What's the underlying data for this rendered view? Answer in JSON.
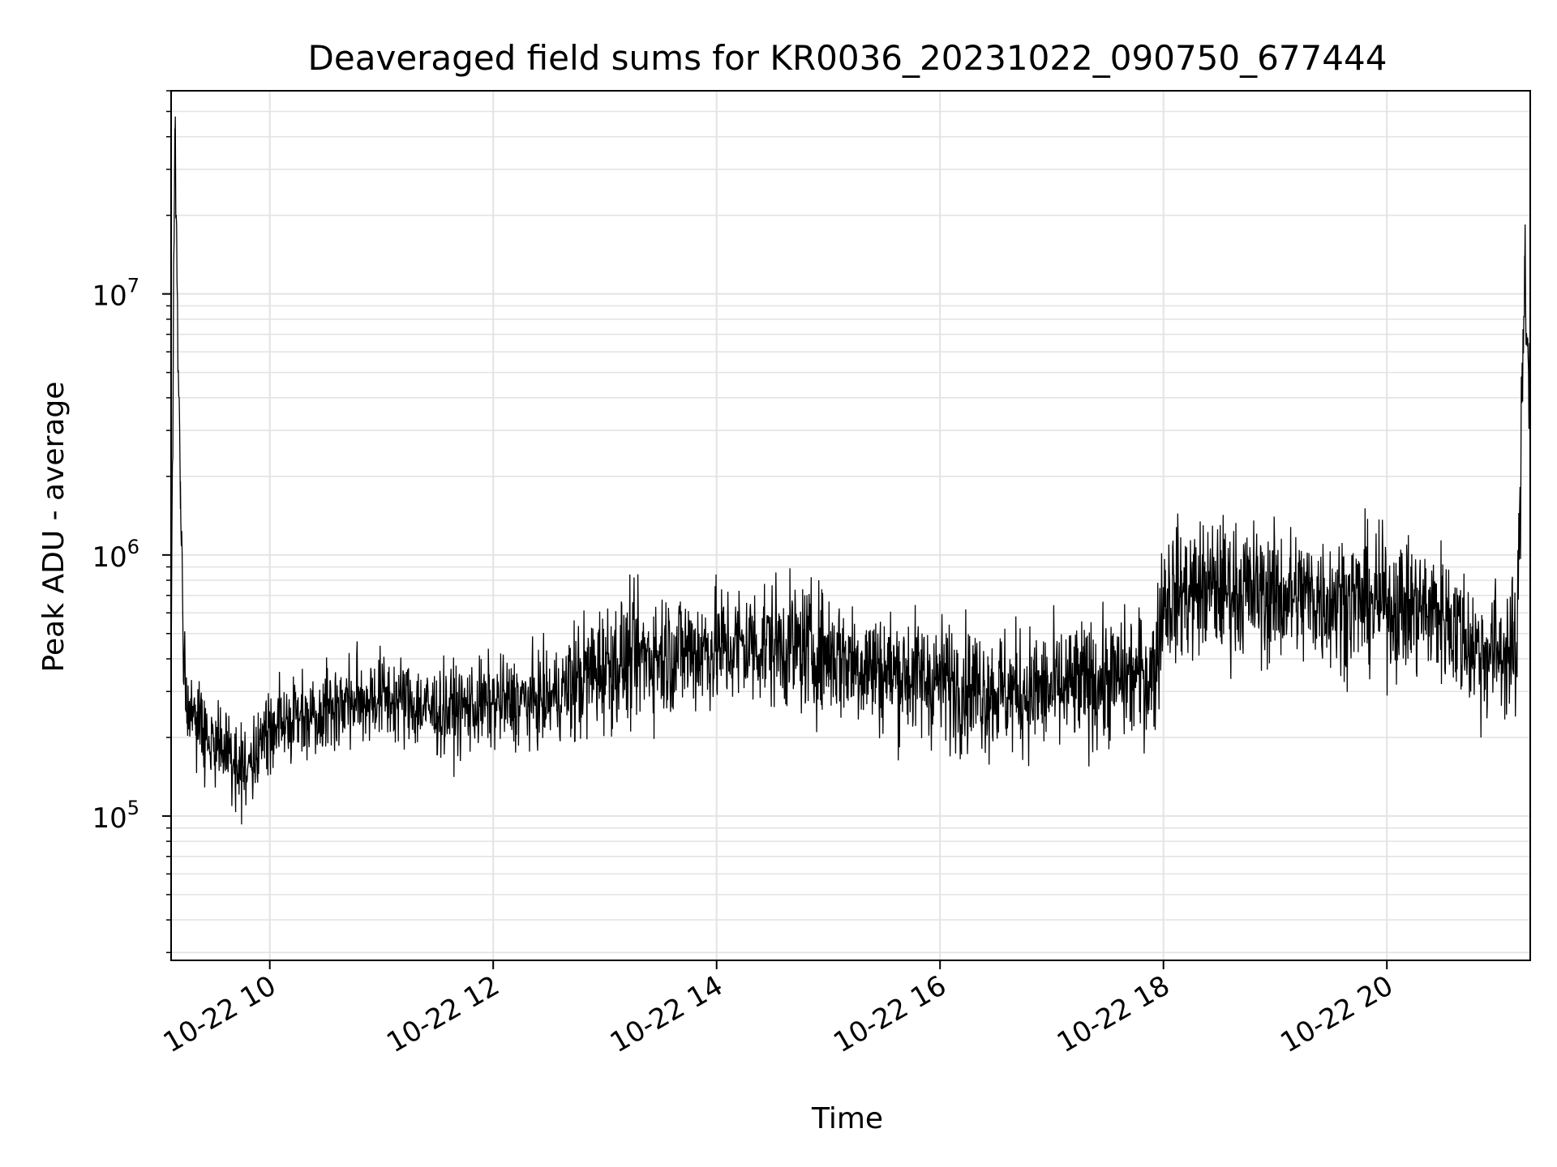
{
  "chart_data": {
    "type": "line",
    "title": "Deaveraged field sums for KR0036_20231022_090750_677444",
    "xlabel": "Time",
    "ylabel": "Peak ADU - average",
    "y_scale": "log",
    "ylim": [
      28000,
      60000000
    ],
    "xlim": [
      "2023-10-22 09:07",
      "2023-10-22 21:17"
    ],
    "x_ticks": [
      {
        "value": "2023-10-22 10:00",
        "label": "10-22 10"
      },
      {
        "value": "2023-10-22 12:00",
        "label": "10-22 12"
      },
      {
        "value": "2023-10-22 14:00",
        "label": "10-22 14"
      },
      {
        "value": "2023-10-22 16:00",
        "label": "10-22 16"
      },
      {
        "value": "2023-10-22 18:00",
        "label": "10-22 18"
      },
      {
        "value": "2023-10-22 20:00",
        "label": "10-22 20"
      }
    ],
    "y_ticks": [
      {
        "value": 100000,
        "base": "10",
        "exp": "5"
      },
      {
        "value": 1000000,
        "base": "10",
        "exp": "6"
      },
      {
        "value": 10000000,
        "base": "10",
        "exp": "7"
      }
    ],
    "grid": true,
    "line_color": "#000000",
    "series": [
      {
        "x": [
          "2023-10-22 09:07",
          "2023-10-22 09:09",
          "2023-10-22 09:12",
          "2023-10-22 09:15",
          "2023-10-22 09:30",
          "2023-10-22 09:45",
          "2023-10-22 10:00",
          "2023-10-22 10:30",
          "2023-10-22 11:00",
          "2023-10-22 11:30",
          "2023-10-22 12:00",
          "2023-10-22 12:30",
          "2023-10-22 13:00",
          "2023-10-22 13:30",
          "2023-10-22 14:00",
          "2023-10-22 14:30",
          "2023-10-22 15:00",
          "2023-10-22 15:30",
          "2023-10-22 16:00",
          "2023-10-22 16:30",
          "2023-10-22 17:00",
          "2023-10-22 17:30",
          "2023-10-22 17:55",
          "2023-10-22 18:00",
          "2023-10-22 18:30",
          "2023-10-22 19:00",
          "2023-10-22 19:30",
          "2023-10-22 20:00",
          "2023-10-22 20:30",
          "2023-10-22 20:50",
          "2023-10-22 21:00",
          "2023-10-22 21:10",
          "2023-10-22 21:14",
          "2023-10-22 21:17"
        ],
        "y": [
          350000,
          43000000,
          1500000,
          250000,
          200000,
          150000,
          220000,
          260000,
          290000,
          250000,
          270000,
          280000,
          380000,
          420000,
          440000,
          460000,
          420000,
          360000,
          330000,
          300000,
          300000,
          330000,
          350000,
          700000,
          750000,
          700000,
          680000,
          650000,
          600000,
          420000,
          430000,
          420000,
          14000000,
          3500000
        ]
      }
    ]
  }
}
